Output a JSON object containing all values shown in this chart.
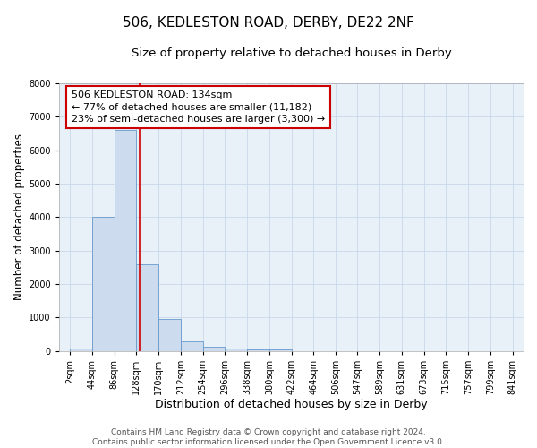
{
  "title1": "506, KEDLESTON ROAD, DERBY, DE22 2NF",
  "title2": "Size of property relative to detached houses in Derby",
  "xlabel": "Distribution of detached houses by size in Derby",
  "ylabel": "Number of detached properties",
  "bin_left_edges": [
    2,
    44,
    86,
    128,
    170,
    212,
    254,
    296,
    338,
    380,
    422,
    464,
    506,
    547,
    589,
    631,
    673,
    715,
    757,
    799
  ],
  "bin_width": 42,
  "bar_heights": [
    75,
    4000,
    6600,
    2600,
    950,
    300,
    130,
    75,
    60,
    60,
    0,
    0,
    0,
    0,
    0,
    0,
    0,
    0,
    0,
    0
  ],
  "bar_color": "#ccdcee",
  "bar_edge_color": "#6699cc",
  "property_line_x": 134,
  "property_line_color": "#cc0000",
  "annotation_text": "506 KEDLESTON ROAD: 134sqm\n← 77% of detached houses are smaller (11,182)\n23% of semi-detached houses are larger (3,300) →",
  "annotation_box_color": "#cc0000",
  "annotation_fontsize": 8,
  "ylim": [
    0,
    8000
  ],
  "yticks": [
    0,
    1000,
    2000,
    3000,
    4000,
    5000,
    6000,
    7000,
    8000
  ],
  "tick_labels": [
    "2sqm",
    "44sqm",
    "86sqm",
    "128sqm",
    "170sqm",
    "212sqm",
    "254sqm",
    "296sqm",
    "338sqm",
    "380sqm",
    "422sqm",
    "464sqm",
    "506sqm",
    "547sqm",
    "589sqm",
    "631sqm",
    "673sqm",
    "715sqm",
    "757sqm",
    "799sqm",
    "841sqm"
  ],
  "xlim_left": -19,
  "xlim_right": 862,
  "grid_color": "#c8d8ea",
  "background_color": "#e8f0f8",
  "footer_text": "Contains HM Land Registry data © Crown copyright and database right 2024.\nContains public sector information licensed under the Open Government Licence v3.0.",
  "title1_fontsize": 11,
  "title2_fontsize": 9.5,
  "xlabel_fontsize": 9,
  "ylabel_fontsize": 8.5,
  "tick_fontsize": 7,
  "footer_fontsize": 6.5
}
